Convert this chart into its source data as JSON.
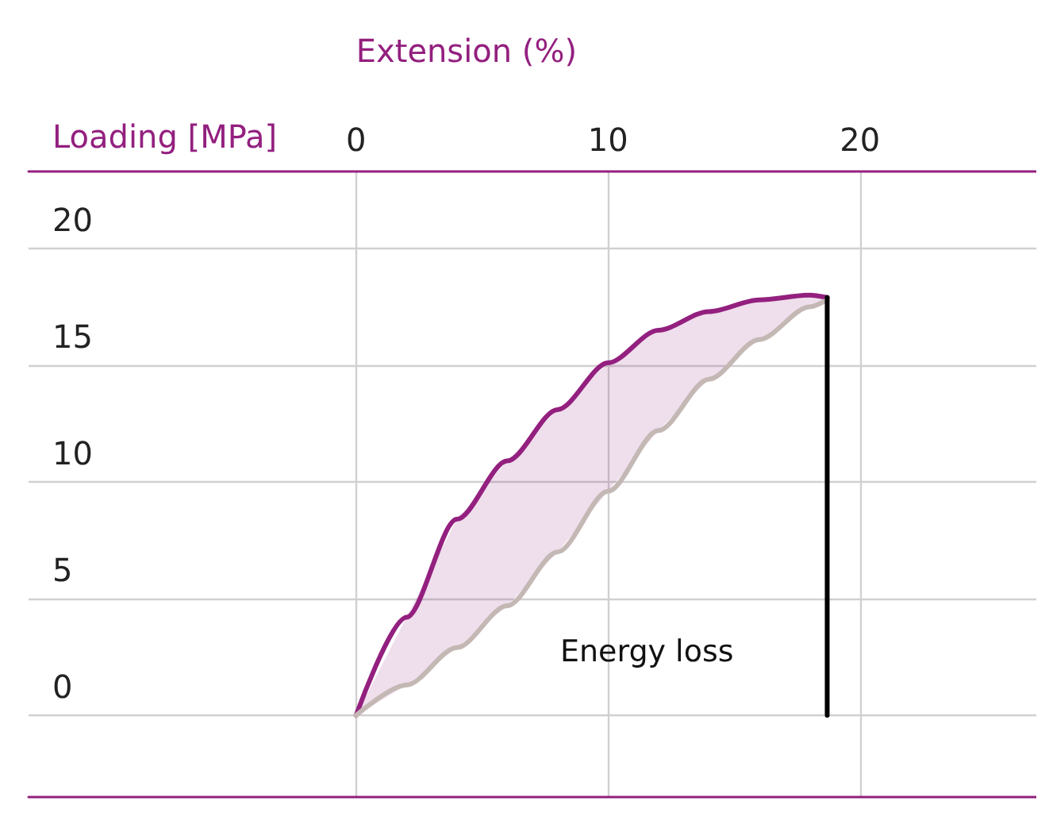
{
  "chart_data": {
    "type": "line",
    "xlabel": "Extension (%)",
    "ylabel": "Loading [MPa]",
    "x": [
      0,
      2,
      4,
      6,
      8,
      10,
      12,
      14,
      16,
      18,
      18.7
    ],
    "series": [
      {
        "color": "#93207f",
        "values": [
          0,
          4.2,
          8.4,
          10.9,
          13.1,
          15.1,
          16.5,
          17.3,
          17.8,
          18.0,
          17.9
        ]
      },
      {
        "color": "#c4b8b5",
        "values": [
          0,
          1.3,
          2.9,
          4.7,
          7.0,
          9.6,
          12.2,
          14.4,
          16.1,
          17.5,
          17.8
        ]
      },
      {
        "color": "#000000",
        "x": [
          18.7,
          18.7
        ],
        "values": [
          17.9,
          0
        ]
      }
    ],
    "xlim": [
      -13,
      27
    ],
    "ylim": [
      -3.5,
      23.3
    ],
    "xticks": [
      0,
      10,
      20
    ],
    "yticks": [
      0,
      5,
      10,
      15,
      20
    ],
    "grid": true,
    "marker": "none",
    "annotations": [
      "Energy loss"
    ]
  }
}
